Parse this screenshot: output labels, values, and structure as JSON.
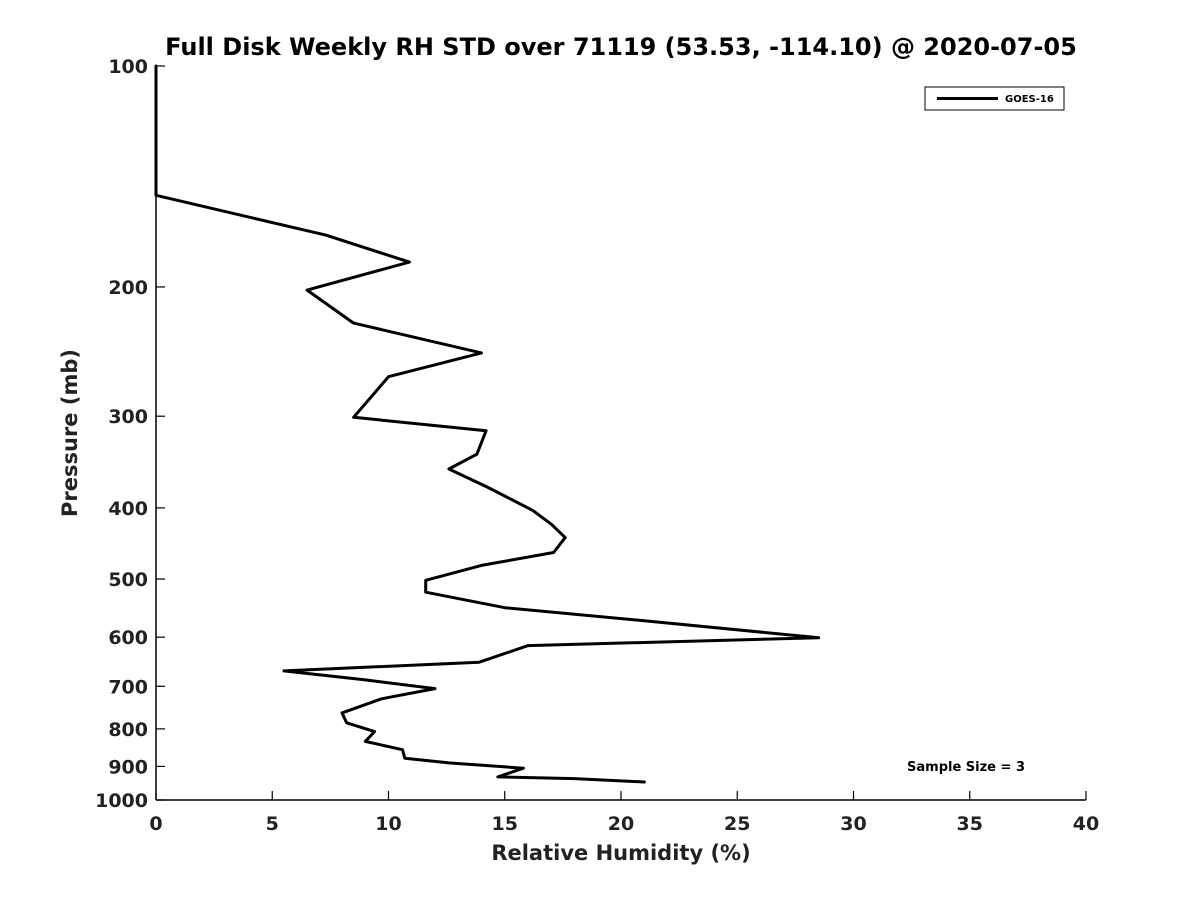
{
  "chart_data": {
    "type": "line",
    "title": "Full Disk Weekly RH STD over 71119 (53.53, -114.10) @ 2020-07-05",
    "xlabel": "Relative Humidity (%)",
    "ylabel": "Pressure (mb)",
    "xlim": [
      0,
      40
    ],
    "ylim": [
      100,
      1000
    ],
    "yscale": "log",
    "y_reversed": true,
    "x_ticks": [
      0,
      5,
      10,
      15,
      20,
      25,
      30,
      35,
      40
    ],
    "y_ticks": [
      100,
      200,
      300,
      400,
      500,
      600,
      700,
      800,
      900,
      1000
    ],
    "grid": false,
    "legend": "top-right",
    "series": [
      {
        "name": "GOES-16",
        "color": "#000000",
        "points": [
          [
            0.0,
            100
          ],
          [
            0.0,
            150
          ],
          [
            7.3,
            170
          ],
          [
            10.9,
            185
          ],
          [
            6.5,
            202
          ],
          [
            8.5,
            224
          ],
          [
            14.0,
            246
          ],
          [
            10.0,
            265
          ],
          [
            8.5,
            301
          ],
          [
            14.2,
            314
          ],
          [
            13.8,
            338
          ],
          [
            12.6,
            354
          ],
          [
            14.2,
            374
          ],
          [
            16.2,
            403
          ],
          [
            17.0,
            421
          ],
          [
            17.6,
            439
          ],
          [
            17.1,
            460
          ],
          [
            14.0,
            479
          ],
          [
            11.6,
            502
          ],
          [
            11.6,
            521
          ],
          [
            15.0,
            547
          ],
          [
            21.0,
            570
          ],
          [
            28.5,
            601
          ],
          [
            16.0,
            616
          ],
          [
            13.9,
            649
          ],
          [
            5.5,
            667
          ],
          [
            9.0,
            686
          ],
          [
            12.0,
            705
          ],
          [
            9.7,
            728
          ],
          [
            8.0,
            761
          ],
          [
            8.2,
            785
          ],
          [
            9.4,
            807
          ],
          [
            9.0,
            832
          ],
          [
            10.6,
            854
          ],
          [
            10.7,
            877
          ],
          [
            12.6,
            890
          ],
          [
            15.8,
            905
          ],
          [
            14.7,
            930
          ],
          [
            18.0,
            935
          ],
          [
            21.0,
            945
          ]
        ]
      }
    ],
    "annotations": [
      {
        "text": "Sample Size = 3",
        "position": "bottom-right"
      }
    ]
  }
}
